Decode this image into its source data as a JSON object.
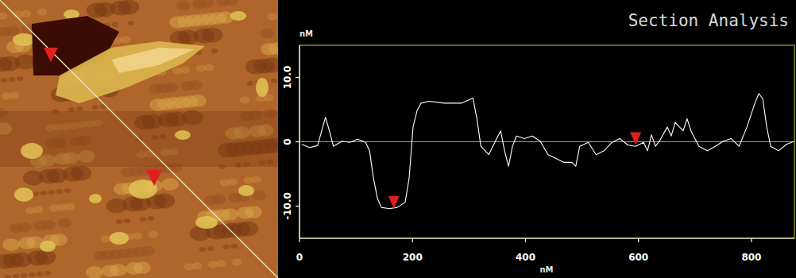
{
  "chart_data": {
    "type": "line",
    "title": "Section Analysis",
    "y_label": "nM",
    "x_label": "nM",
    "x": [
      4,
      18,
      32,
      46,
      53,
      60,
      75,
      89,
      103,
      117,
      124,
      131,
      138,
      145,
      159,
      173,
      187,
      194,
      201,
      208,
      215,
      229,
      257,
      286,
      307,
      314,
      321,
      335,
      349,
      356,
      363,
      370,
      377,
      384,
      398,
      412,
      426,
      440,
      454,
      468,
      482,
      489,
      496,
      511,
      525,
      539,
      553,
      567,
      581,
      595,
      609,
      616,
      623,
      630,
      637,
      651,
      658,
      665,
      679,
      686,
      693,
      707,
      722,
      736,
      750,
      764,
      778,
      792,
      806,
      813,
      820,
      827,
      834,
      848,
      862,
      876
    ],
    "values": [
      -0.4,
      -0.9,
      -0.6,
      3.8,
      1.7,
      -0.7,
      0.1,
      -0.1,
      0.4,
      -0.1,
      -1.4,
      -5.7,
      -8.8,
      -10.2,
      -10.4,
      -10.2,
      -9.4,
      -5.7,
      2.3,
      4.8,
      6.0,
      6.3,
      6.0,
      6.0,
      6.8,
      3.6,
      -0.7,
      -2.0,
      0.5,
      1.7,
      -1.4,
      -3.8,
      -0.7,
      0.9,
      0.5,
      0.9,
      0.1,
      -2.0,
      -2.6,
      -3.2,
      -3.2,
      -3.8,
      -0.7,
      -0.1,
      -2.0,
      -1.4,
      -0.1,
      0.5,
      -0.5,
      -0.7,
      -0.1,
      -1.4,
      1.1,
      -0.7,
      0.1,
      2.3,
      0.9,
      3.0,
      1.7,
      3.6,
      1.7,
      -0.7,
      -1.4,
      -0.7,
      0.1,
      0.5,
      -0.7,
      2.3,
      6.0,
      7.5,
      6.7,
      2.3,
      -0.7,
      -1.4,
      -0.4,
      0.1
    ],
    "color": "#ffffff",
    "xlim": [
      0,
      876
    ],
    "ylim": [
      -15,
      15
    ],
    "xticks": [
      0,
      200,
      400,
      600,
      800
    ],
    "yticks": [
      {
        "value": -10,
        "label": "-10.0"
      },
      0,
      {
        "value": 10,
        "label": "10.0"
      }
    ],
    "grid": false,
    "reference_line": 0,
    "cursors": {
      "x": [
        167,
        595
      ],
      "y": [
        -10.4,
        -0.5
      ]
    }
  }
}
